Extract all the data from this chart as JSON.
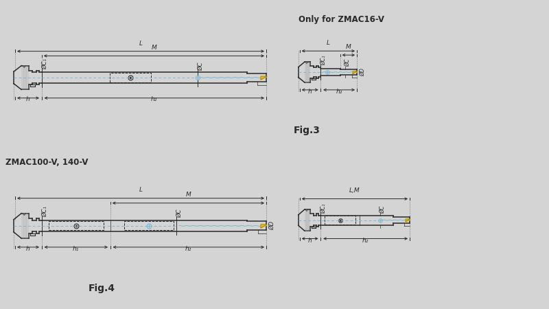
{
  "bg_color": "#d4d4d4",
  "line_color": "#2a2a2a",
  "axis_color": "#7ab8d4",
  "yellow_color": "#e8c020",
  "title1": "Only for ZMAC16-V",
  "title2": "ZMAC100-V, 140-V",
  "fig3": "Fig.3",
  "fig4": "Fig.4",
  "font_size_title": 8.5,
  "font_size_label": 6,
  "font_size_fig": 10
}
